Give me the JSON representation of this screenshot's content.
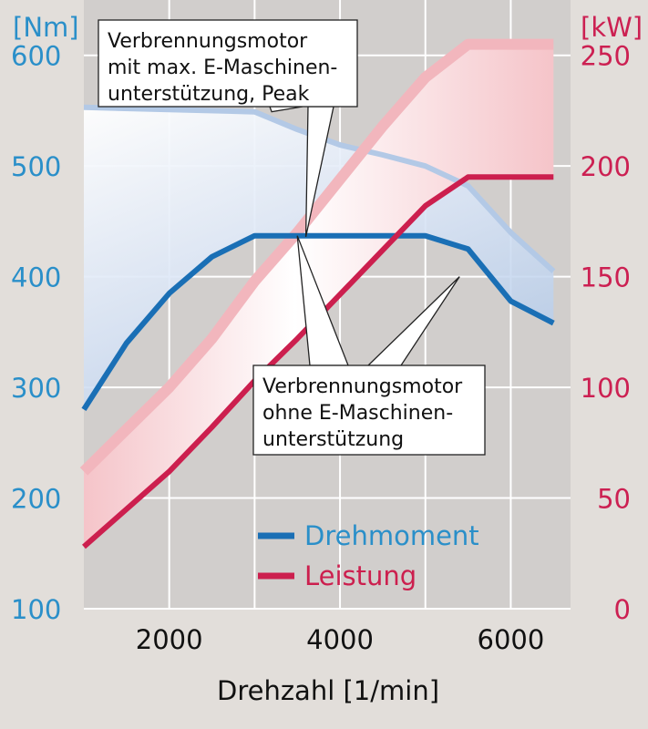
{
  "chart_data": {
    "type": "line",
    "xlabel": "Drehzahl [1/min]",
    "xlim": [
      1000,
      6700
    ],
    "x_ticks": [
      "2000",
      "4000",
      "6000"
    ],
    "y_left": {
      "unit_label": "[Nm]",
      "lim": [
        100,
        650
      ],
      "ticks": [
        "100",
        "200",
        "300",
        "400",
        "500",
        "600"
      ]
    },
    "y_right": {
      "unit_label": "[kW]",
      "lim": [
        0,
        275
      ],
      "ticks": [
        "0",
        "50",
        "100",
        "150",
        "200",
        "250"
      ]
    },
    "grid": true,
    "legend": {
      "placement": "bottom-center",
      "entries": [
        "Drehmoment",
        "Leistung"
      ]
    },
    "series": [
      {
        "name": "Drehmoment",
        "axis": "left",
        "variant": "ohne E-Maschinenunterstützung",
        "x": [
          1000,
          1500,
          2000,
          2500,
          3000,
          3500,
          4000,
          4500,
          5000,
          5500,
          6000,
          6500
        ],
        "values": [
          280,
          340,
          385,
          418,
          437,
          437,
          437,
          437,
          437,
          425,
          378,
          358
        ]
      },
      {
        "name": "Drehmoment",
        "axis": "left",
        "variant": "mit max. E-Maschinenunterstützung, Peak",
        "x": [
          1000,
          2000,
          3000,
          3500,
          4000,
          4500,
          5000,
          5500,
          6000,
          6500
        ],
        "values": [
          553,
          551,
          549,
          533,
          519,
          510,
          500,
          482,
          440,
          405
        ]
      },
      {
        "name": "Leistung",
        "axis": "right",
        "variant": "ohne E-Maschinenunterstützung",
        "x": [
          1000,
          1500,
          2000,
          2500,
          3000,
          3500,
          4000,
          4500,
          5000,
          5500,
          6000,
          6500
        ],
        "values": [
          28,
          45,
          62,
          82,
          103,
          122,
          142,
          162,
          182,
          195,
          195,
          195
        ]
      },
      {
        "name": "Leistung",
        "axis": "right",
        "variant": "mit max. E-Maschinenunterstützung, Peak",
        "x": [
          1000,
          1500,
          2000,
          2500,
          3000,
          3500,
          4000,
          4500,
          5000,
          5500,
          6000,
          6500
        ],
        "values": [
          62,
          81,
          100,
          122,
          148,
          170,
          194,
          218,
          240,
          255,
          255,
          255
        ]
      }
    ],
    "annotations": [
      {
        "id": "peak",
        "lines": [
          "Verbrennungsmotor",
          "mit max. E-Maschinen-",
          "unterstützung, Peak"
        ]
      },
      {
        "id": "base",
        "lines": [
          "Verbrennungsmotor",
          "ohne E-Maschinen-",
          "unterstützung"
        ]
      }
    ]
  },
  "colors": {
    "torque": "#1a6fb5",
    "torque_peak": "#b3c9e6",
    "power": "#cc1f4e",
    "power_peak": "#f2b6bd",
    "axis_left_text": "#2a8fc9",
    "axis_right_text": "#cc2052",
    "plot_bg": "#d1cecc",
    "margin_bg": "#e2deda",
    "grid": "#ffffff"
  }
}
